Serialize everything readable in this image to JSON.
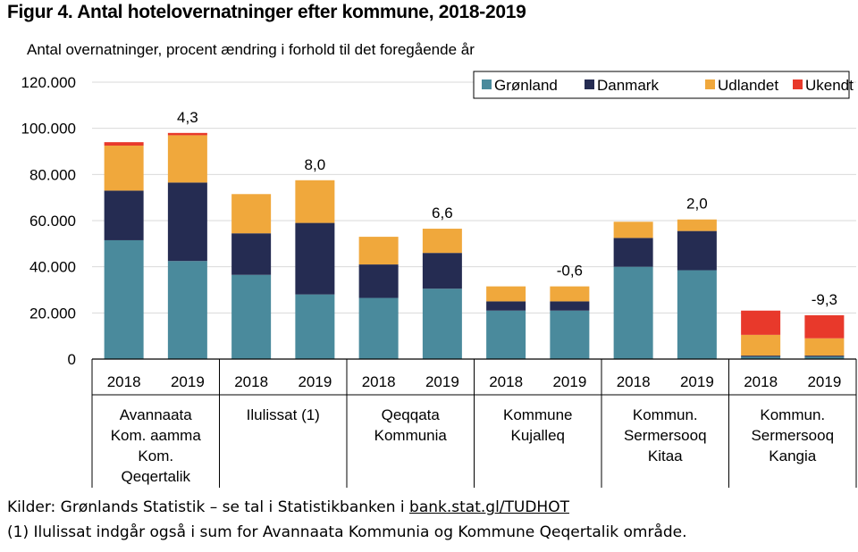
{
  "figure": {
    "title": "Figur 4. Antal hotelovernatninger efter kommune, 2018-2019"
  },
  "chart_data": {
    "type": "bar",
    "stacked": true,
    "subtitle": "Antal overnatninger, procent ændring i forhold til det foregående år",
    "ylim": [
      0,
      120000
    ],
    "yticks": [
      "0",
      "20.000",
      "40.000",
      "60.000",
      "80.000",
      "100.000",
      "120.000"
    ],
    "grid": true,
    "legend_position": "top-right",
    "groups": [
      {
        "label": [
          "Avannaata",
          "Kom. aamma",
          "Kom.",
          "Qeqertalik"
        ],
        "years": [
          "2018",
          "2019"
        ],
        "change_label": "4,3"
      },
      {
        "label": [
          "Ilulissat (1)"
        ],
        "years": [
          "2018",
          "2019"
        ],
        "change_label": "8,0"
      },
      {
        "label": [
          "Qeqqata",
          "Kommunia"
        ],
        "years": [
          "2018",
          "2019"
        ],
        "change_label": "6,6"
      },
      {
        "label": [
          "Kommune",
          "Kujalleq"
        ],
        "years": [
          "2018",
          "2019"
        ],
        "change_label": "-0,6"
      },
      {
        "label": [
          "Kommun.",
          "Sermersooq",
          "Kitaa"
        ],
        "years": [
          "2018",
          "2019"
        ],
        "change_label": "2,0"
      },
      {
        "label": [
          "Kommun.",
          "Sermersooq",
          "Kangia"
        ],
        "years": [
          "2018",
          "2019"
        ],
        "change_label": "-9,3"
      }
    ],
    "series": [
      {
        "name": "Grønland",
        "color": "#4a8a9c",
        "values": [
          51500,
          42500,
          36500,
          28000,
          26500,
          30500,
          21000,
          21000,
          40000,
          38500,
          1000,
          1000
        ]
      },
      {
        "name": "Danmark",
        "color": "#252c52",
        "values": [
          21500,
          34000,
          18000,
          31000,
          14500,
          15500,
          4000,
          4000,
          12500,
          17000,
          500,
          500
        ]
      },
      {
        "name": "Udlandet",
        "color": "#f0a83c",
        "values": [
          19500,
          20500,
          17000,
          18500,
          12000,
          10500,
          6500,
          6500,
          7000,
          5000,
          9000,
          7500
        ]
      },
      {
        "name": "Ukendt",
        "color": "#e8392b",
        "values": [
          1500,
          1000,
          0,
          0,
          0,
          0,
          0,
          0,
          0,
          0,
          10500,
          10000
        ]
      }
    ]
  },
  "sources": {
    "line1_prefix": "Kilder: Grønlands Statistik – se tal i Statistikbanken i ",
    "link_text": "bank.stat.gl/TUDHOT",
    "note": "(1) Ilulissat indgår også i sum for Avannaata Kommunia og Kommune Qeqertalik område."
  }
}
